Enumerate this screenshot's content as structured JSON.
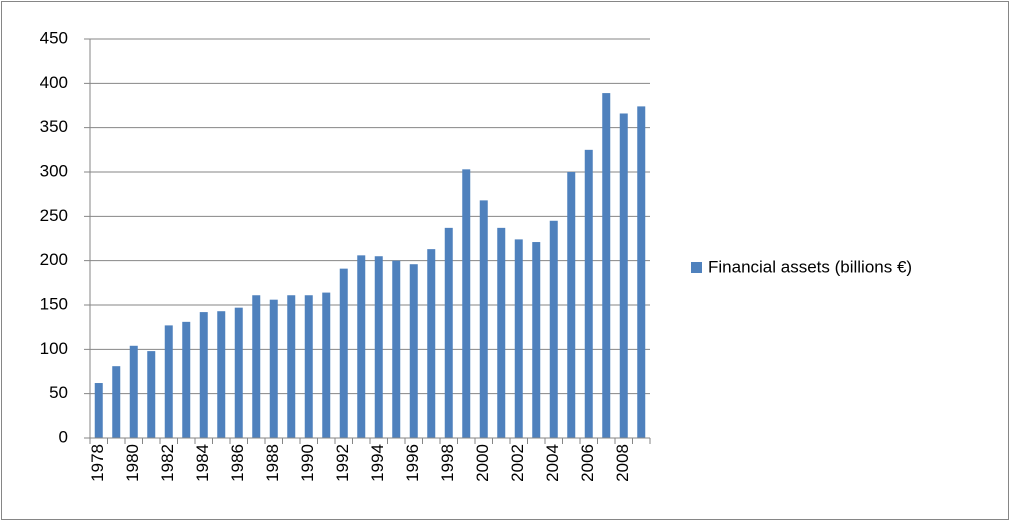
{
  "chart_data": {
    "type": "bar",
    "categories": [
      "1978",
      null,
      "1980",
      null,
      "1982",
      null,
      "1984",
      null,
      "1986",
      null,
      "1988",
      null,
      "1990",
      null,
      "1992",
      null,
      "1994",
      null,
      "1996",
      null,
      "1998",
      null,
      "2000",
      null,
      "2002",
      null,
      "2004",
      null,
      "2006",
      null,
      "2008",
      null
    ],
    "series": [
      {
        "name": "Financial assets (billions €)",
        "color": "#4f81bd",
        "values": [
          62,
          81,
          104,
          98,
          127,
          131,
          142,
          143,
          147,
          161,
          156,
          161,
          161,
          164,
          191,
          206,
          205,
          200,
          196,
          213,
          237,
          303,
          268,
          237,
          224,
          221,
          245,
          300,
          325,
          389,
          366,
          374
        ]
      }
    ],
    "ylim": [
      0,
      450
    ],
    "yticks": [
      0,
      50,
      100,
      150,
      200,
      250,
      300,
      350,
      400,
      450
    ],
    "grid": true,
    "legend": "right"
  }
}
